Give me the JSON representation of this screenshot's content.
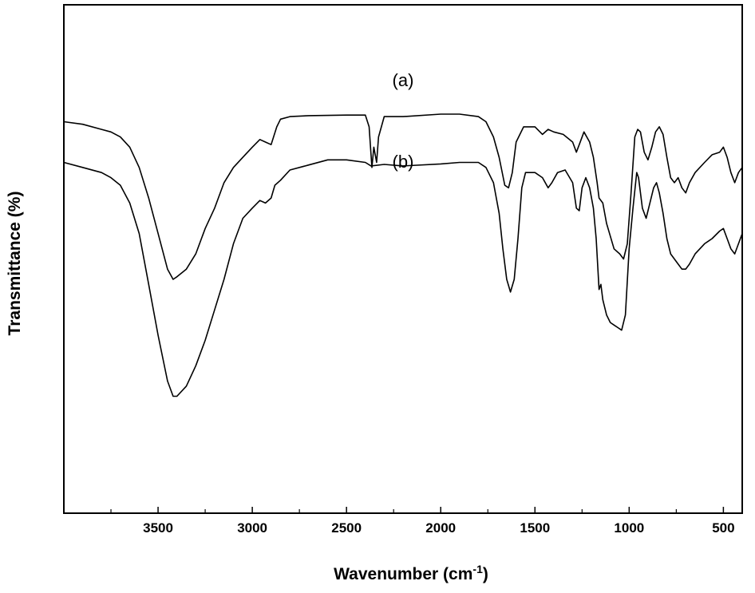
{
  "chart_data": {
    "type": "line",
    "xlabel": "Wavenumber (cm",
    "xlabel_sup": "-1",
    "xlabel_close": ")",
    "ylabel": "Transmittance (%)",
    "x_reversed": true,
    "xlim": [
      4000,
      400
    ],
    "ylim": [
      0,
      100
    ],
    "y_ticks_shown": false,
    "grid": false,
    "x_ticks": [
      3500,
      3000,
      2500,
      2000,
      1500,
      1000,
      500
    ],
    "x_tick_labels": [
      "3500",
      "3000",
      "2500",
      "2000",
      "1500",
      "1000",
      "500"
    ],
    "series": [
      {
        "name": "(a)",
        "label_at": [
          2200,
          84
        ],
        "points": [
          [
            4000,
            77
          ],
          [
            3900,
            76.5
          ],
          [
            3800,
            75.5
          ],
          [
            3750,
            75
          ],
          [
            3700,
            74
          ],
          [
            3650,
            72
          ],
          [
            3600,
            68
          ],
          [
            3550,
            62
          ],
          [
            3500,
            55
          ],
          [
            3450,
            48
          ],
          [
            3420,
            46
          ],
          [
            3400,
            46.5
          ],
          [
            3350,
            48
          ],
          [
            3300,
            51
          ],
          [
            3250,
            56
          ],
          [
            3200,
            60
          ],
          [
            3150,
            65
          ],
          [
            3100,
            68
          ],
          [
            3050,
            70
          ],
          [
            3000,
            72
          ],
          [
            2960,
            73.5
          ],
          [
            2930,
            73
          ],
          [
            2900,
            72.5
          ],
          [
            2870,
            76
          ],
          [
            2850,
            77.5
          ],
          [
            2800,
            78
          ],
          [
            2700,
            78.2
          ],
          [
            2500,
            78.3
          ],
          [
            2400,
            78.3
          ],
          [
            2380,
            76
          ],
          [
            2365,
            68
          ],
          [
            2355,
            72
          ],
          [
            2340,
            69
          ],
          [
            2330,
            74
          ],
          [
            2300,
            78
          ],
          [
            2200,
            78
          ],
          [
            2000,
            78.5
          ],
          [
            1900,
            78.5
          ],
          [
            1800,
            78
          ],
          [
            1760,
            77
          ],
          [
            1720,
            74
          ],
          [
            1690,
            70
          ],
          [
            1660,
            64.5
          ],
          [
            1640,
            64
          ],
          [
            1620,
            67
          ],
          [
            1600,
            73
          ],
          [
            1560,
            76
          ],
          [
            1500,
            76
          ],
          [
            1460,
            74.5
          ],
          [
            1430,
            75.5
          ],
          [
            1400,
            75
          ],
          [
            1350,
            74.5
          ],
          [
            1300,
            73
          ],
          [
            1280,
            71
          ],
          [
            1265,
            72.5
          ],
          [
            1240,
            75
          ],
          [
            1210,
            73
          ],
          [
            1190,
            70
          ],
          [
            1170,
            65
          ],
          [
            1160,
            62
          ],
          [
            1140,
            61
          ],
          [
            1120,
            57
          ],
          [
            1080,
            52
          ],
          [
            1050,
            51
          ],
          [
            1030,
            50
          ],
          [
            1010,
            53
          ],
          [
            990,
            63
          ],
          [
            970,
            74
          ],
          [
            955,
            75.5
          ],
          [
            940,
            75
          ],
          [
            920,
            71
          ],
          [
            900,
            69.5
          ],
          [
            880,
            72
          ],
          [
            860,
            75
          ],
          [
            840,
            76
          ],
          [
            820,
            74.5
          ],
          [
            800,
            70
          ],
          [
            780,
            66
          ],
          [
            760,
            65
          ],
          [
            740,
            66
          ],
          [
            720,
            64
          ],
          [
            700,
            63
          ],
          [
            680,
            65
          ],
          [
            650,
            67
          ],
          [
            600,
            69
          ],
          [
            560,
            70.5
          ],
          [
            520,
            71
          ],
          [
            500,
            72
          ],
          [
            480,
            70
          ],
          [
            460,
            67
          ],
          [
            440,
            65
          ],
          [
            420,
            67
          ],
          [
            400,
            68
          ]
        ]
      },
      {
        "name": "(b)",
        "label_at": [
          2200,
          68
        ],
        "points": [
          [
            4000,
            69
          ],
          [
            3900,
            68
          ],
          [
            3800,
            67
          ],
          [
            3750,
            66
          ],
          [
            3700,
            64.5
          ],
          [
            3650,
            61
          ],
          [
            3600,
            55
          ],
          [
            3550,
            45
          ],
          [
            3500,
            35
          ],
          [
            3450,
            26
          ],
          [
            3420,
            23
          ],
          [
            3400,
            23
          ],
          [
            3350,
            25
          ],
          [
            3300,
            29
          ],
          [
            3250,
            34
          ],
          [
            3200,
            40
          ],
          [
            3150,
            46
          ],
          [
            3100,
            53
          ],
          [
            3050,
            58
          ],
          [
            3000,
            60
          ],
          [
            2960,
            61.5
          ],
          [
            2930,
            61
          ],
          [
            2900,
            62
          ],
          [
            2880,
            64.5
          ],
          [
            2850,
            65.5
          ],
          [
            2800,
            67.5
          ],
          [
            2700,
            68.5
          ],
          [
            2600,
            69.5
          ],
          [
            2500,
            69.5
          ],
          [
            2400,
            69
          ],
          [
            2370,
            68.3
          ],
          [
            2300,
            68.6
          ],
          [
            2200,
            68.3
          ],
          [
            2000,
            68.7
          ],
          [
            1900,
            69
          ],
          [
            1800,
            69
          ],
          [
            1760,
            68
          ],
          [
            1720,
            65
          ],
          [
            1690,
            59
          ],
          [
            1670,
            52
          ],
          [
            1650,
            46
          ],
          [
            1630,
            43.5
          ],
          [
            1610,
            46
          ],
          [
            1590,
            54
          ],
          [
            1570,
            64
          ],
          [
            1550,
            67
          ],
          [
            1500,
            67
          ],
          [
            1460,
            66
          ],
          [
            1430,
            64
          ],
          [
            1410,
            65
          ],
          [
            1380,
            67
          ],
          [
            1340,
            67.5
          ],
          [
            1300,
            65
          ],
          [
            1280,
            60
          ],
          [
            1265,
            59.5
          ],
          [
            1250,
            64
          ],
          [
            1230,
            66
          ],
          [
            1210,
            64
          ],
          [
            1190,
            60
          ],
          [
            1175,
            54
          ],
          [
            1160,
            44
          ],
          [
            1150,
            45
          ],
          [
            1140,
            42
          ],
          [
            1120,
            39
          ],
          [
            1100,
            37.5
          ],
          [
            1080,
            37
          ],
          [
            1060,
            36.5
          ],
          [
            1040,
            36
          ],
          [
            1020,
            39
          ],
          [
            1000,
            52
          ],
          [
            980,
            60
          ],
          [
            960,
            67
          ],
          [
            950,
            66
          ],
          [
            930,
            60
          ],
          [
            910,
            58
          ],
          [
            890,
            61
          ],
          [
            870,
            64
          ],
          [
            855,
            65
          ],
          [
            840,
            63
          ],
          [
            820,
            59
          ],
          [
            800,
            54
          ],
          [
            780,
            51
          ],
          [
            760,
            50
          ],
          [
            740,
            49
          ],
          [
            720,
            48
          ],
          [
            700,
            48
          ],
          [
            680,
            49
          ],
          [
            650,
            51
          ],
          [
            600,
            53
          ],
          [
            560,
            54
          ],
          [
            520,
            55.5
          ],
          [
            500,
            56
          ],
          [
            480,
            54
          ],
          [
            460,
            52
          ],
          [
            440,
            51
          ],
          [
            420,
            53
          ],
          [
            400,
            55
          ]
        ]
      }
    ]
  }
}
